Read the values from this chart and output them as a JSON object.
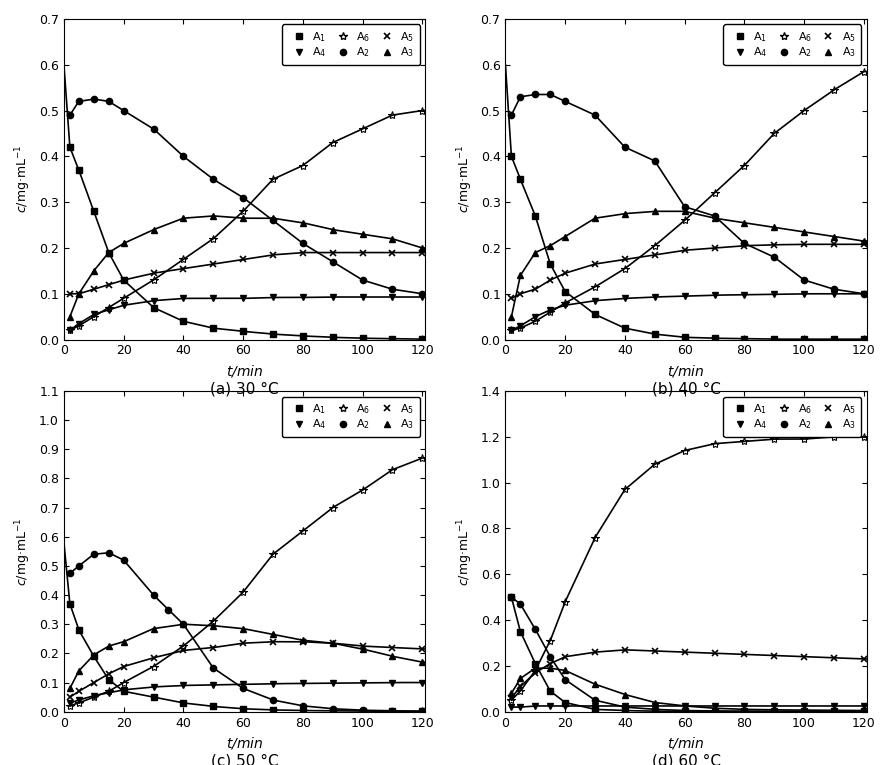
{
  "subplots": [
    {
      "title": "(a) 30 °C",
      "ylim": [
        0,
        0.7
      ],
      "yticks": [
        0.0,
        0.1,
        0.2,
        0.3,
        0.4,
        0.5,
        0.6,
        0.7
      ],
      "series": {
        "A1": {
          "t_pts": [
            2,
            5,
            10,
            15,
            20,
            30,
            40,
            50,
            60,
            70,
            80,
            90,
            100,
            110,
            120
          ],
          "c_pts": [
            0.42,
            0.37,
            0.28,
            0.19,
            0.13,
            0.07,
            0.04,
            0.025,
            0.018,
            0.012,
            0.008,
            0.005,
            0.003,
            0.002,
            0.001
          ],
          "marker": "s",
          "curve_extend_t0": 0.6
        },
        "A2": {
          "t_pts": [
            2,
            5,
            10,
            15,
            20,
            30,
            40,
            50,
            60,
            70,
            80,
            90,
            100,
            110,
            120
          ],
          "c_pts": [
            0.49,
            0.52,
            0.525,
            0.52,
            0.5,
            0.46,
            0.4,
            0.35,
            0.31,
            0.26,
            0.21,
            0.17,
            0.13,
            0.11,
            0.1
          ],
          "marker": "o",
          "curve_extend_t0": null
        },
        "A3": {
          "t_pts": [
            2,
            5,
            10,
            15,
            20,
            30,
            40,
            50,
            60,
            70,
            80,
            90,
            100,
            110,
            120
          ],
          "c_pts": [
            0.05,
            0.1,
            0.15,
            0.19,
            0.21,
            0.24,
            0.265,
            0.27,
            0.265,
            0.265,
            0.255,
            0.24,
            0.23,
            0.22,
            0.2
          ],
          "marker": "^",
          "curve_extend_t0": null
        },
        "A4": {
          "t_pts": [
            2,
            5,
            10,
            15,
            20,
            30,
            40,
            50,
            60,
            70,
            80,
            90,
            100,
            110,
            120
          ],
          "c_pts": [
            0.02,
            0.035,
            0.055,
            0.065,
            0.075,
            0.085,
            0.09,
            0.09,
            0.09,
            0.092,
            0.092,
            0.093,
            0.093,
            0.093,
            0.093
          ],
          "marker": "v",
          "curve_extend_t0": null
        },
        "A5": {
          "t_pts": [
            2,
            5,
            10,
            15,
            20,
            30,
            40,
            50,
            60,
            70,
            80,
            90,
            100,
            110,
            120
          ],
          "c_pts": [
            0.1,
            0.1,
            0.11,
            0.12,
            0.13,
            0.145,
            0.155,
            0.165,
            0.175,
            0.185,
            0.19,
            0.19,
            0.19,
            0.19,
            0.19
          ],
          "marker": "x",
          "curve_extend_t0": null
        },
        "A6": {
          "t_pts": [
            2,
            5,
            10,
            15,
            20,
            30,
            40,
            50,
            60,
            70,
            80,
            90,
            100,
            110,
            120
          ],
          "c_pts": [
            0.02,
            0.03,
            0.05,
            0.07,
            0.09,
            0.13,
            0.175,
            0.22,
            0.28,
            0.35,
            0.38,
            0.43,
            0.46,
            0.49,
            0.5
          ],
          "marker": "*",
          "curve_extend_t0": null
        }
      }
    },
    {
      "title": "(b) 40 °C",
      "ylim": [
        0,
        0.7
      ],
      "yticks": [
        0.0,
        0.1,
        0.2,
        0.3,
        0.4,
        0.5,
        0.6,
        0.7
      ],
      "series": {
        "A1": {
          "t_pts": [
            2,
            5,
            10,
            15,
            20,
            30,
            40,
            50,
            60,
            70,
            80,
            90,
            100,
            110,
            120
          ],
          "c_pts": [
            0.4,
            0.35,
            0.27,
            0.165,
            0.105,
            0.055,
            0.025,
            0.012,
            0.005,
            0.003,
            0.002,
            0.001,
            0.001,
            0.001,
            0.001
          ],
          "marker": "s",
          "curve_extend_t0": 0.6
        },
        "A2": {
          "t_pts": [
            2,
            5,
            10,
            15,
            20,
            30,
            40,
            50,
            60,
            70,
            80,
            90,
            100,
            110,
            120
          ],
          "c_pts": [
            0.49,
            0.53,
            0.535,
            0.535,
            0.52,
            0.49,
            0.42,
            0.39,
            0.29,
            0.27,
            0.21,
            0.18,
            0.13,
            0.11,
            0.1
          ],
          "marker": "o",
          "curve_extend_t0": null
        },
        "A3": {
          "t_pts": [
            2,
            5,
            10,
            15,
            20,
            30,
            40,
            50,
            60,
            70,
            80,
            90,
            100,
            110,
            120
          ],
          "c_pts": [
            0.05,
            0.14,
            0.19,
            0.205,
            0.225,
            0.265,
            0.275,
            0.28,
            0.28,
            0.265,
            0.255,
            0.245,
            0.235,
            0.225,
            0.215
          ],
          "marker": "^",
          "curve_extend_t0": null
        },
        "A4": {
          "t_pts": [
            2,
            5,
            10,
            15,
            20,
            30,
            40,
            50,
            60,
            70,
            80,
            90,
            100,
            110,
            120
          ],
          "c_pts": [
            0.02,
            0.03,
            0.05,
            0.065,
            0.075,
            0.085,
            0.09,
            0.093,
            0.095,
            0.097,
            0.098,
            0.099,
            0.1,
            0.1,
            0.1
          ],
          "marker": "v",
          "curve_extend_t0": null
        },
        "A5": {
          "t_pts": [
            2,
            5,
            10,
            15,
            20,
            30,
            40,
            50,
            60,
            70,
            80,
            90,
            100,
            110,
            120
          ],
          "c_pts": [
            0.09,
            0.1,
            0.11,
            0.13,
            0.145,
            0.165,
            0.175,
            0.185,
            0.195,
            0.2,
            0.205,
            0.207,
            0.208,
            0.208,
            0.208
          ],
          "marker": "x",
          "curve_extend_t0": null
        },
        "A6": {
          "t_pts": [
            2,
            5,
            10,
            15,
            20,
            30,
            40,
            50,
            60,
            70,
            80,
            90,
            100,
            110,
            120
          ],
          "c_pts": [
            0.02,
            0.025,
            0.04,
            0.06,
            0.08,
            0.115,
            0.155,
            0.205,
            0.26,
            0.32,
            0.38,
            0.45,
            0.5,
            0.545,
            0.585
          ],
          "marker": "*",
          "curve_extend_t0": null
        }
      }
    },
    {
      "title": "(c) 50 °C",
      "ylim": [
        0,
        1.1
      ],
      "yticks": [
        0.0,
        0.1,
        0.2,
        0.3,
        0.4,
        0.5,
        0.6,
        0.7,
        0.8,
        0.9,
        1.0,
        1.1
      ],
      "series": {
        "A1": {
          "t_pts": [
            2,
            5,
            10,
            15,
            20,
            30,
            40,
            50,
            60,
            70,
            80,
            90,
            100,
            110,
            120
          ],
          "c_pts": [
            0.37,
            0.28,
            0.19,
            0.11,
            0.07,
            0.05,
            0.03,
            0.018,
            0.01,
            0.006,
            0.004,
            0.003,
            0.002,
            0.001,
            0.001
          ],
          "marker": "s",
          "curve_extend_t0": 0.58
        },
        "A2": {
          "t_pts": [
            2,
            5,
            10,
            15,
            20,
            30,
            35,
            40,
            50,
            60,
            70,
            80,
            90,
            100,
            110,
            120
          ],
          "c_pts": [
            0.475,
            0.5,
            0.54,
            0.545,
            0.52,
            0.4,
            0.35,
            0.3,
            0.15,
            0.08,
            0.04,
            0.02,
            0.01,
            0.005,
            0.003,
            0.002
          ],
          "marker": "o",
          "curve_extend_t0": null
        },
        "A3": {
          "t_pts": [
            2,
            5,
            10,
            15,
            20,
            30,
            40,
            50,
            60,
            70,
            80,
            90,
            100,
            110,
            120
          ],
          "c_pts": [
            0.08,
            0.14,
            0.195,
            0.225,
            0.24,
            0.285,
            0.3,
            0.295,
            0.285,
            0.265,
            0.245,
            0.235,
            0.215,
            0.19,
            0.17
          ],
          "marker": "^",
          "curve_extend_t0": null
        },
        "A4": {
          "t_pts": [
            2,
            5,
            10,
            15,
            20,
            30,
            40,
            50,
            60,
            70,
            80,
            90,
            100,
            110,
            120
          ],
          "c_pts": [
            0.03,
            0.04,
            0.055,
            0.065,
            0.075,
            0.085,
            0.09,
            0.092,
            0.094,
            0.096,
            0.097,
            0.098,
            0.099,
            0.1,
            0.1
          ],
          "marker": "v",
          "curve_extend_t0": null
        },
        "A5": {
          "t_pts": [
            2,
            5,
            10,
            15,
            20,
            30,
            40,
            50,
            60,
            70,
            80,
            90,
            100,
            110,
            120
          ],
          "c_pts": [
            0.05,
            0.07,
            0.1,
            0.13,
            0.155,
            0.185,
            0.21,
            0.22,
            0.235,
            0.24,
            0.24,
            0.235,
            0.225,
            0.22,
            0.215
          ],
          "marker": "x",
          "curve_extend_t0": null
        },
        "A6": {
          "t_pts": [
            2,
            5,
            10,
            15,
            20,
            30,
            40,
            50,
            60,
            70,
            80,
            90,
            100,
            110,
            120
          ],
          "c_pts": [
            0.02,
            0.03,
            0.05,
            0.07,
            0.1,
            0.155,
            0.225,
            0.31,
            0.41,
            0.54,
            0.62,
            0.7,
            0.76,
            0.83,
            0.87
          ],
          "marker": "*",
          "curve_extend_t0": null
        }
      }
    },
    {
      "title": "(d) 60 °C",
      "ylim": [
        0,
        1.4
      ],
      "yticks": [
        0.0,
        0.2,
        0.4,
        0.6,
        0.8,
        1.0,
        1.2,
        1.4
      ],
      "series": {
        "A1": {
          "t_pts": [
            2,
            5,
            10,
            15,
            20,
            30,
            40,
            50,
            60,
            70,
            80,
            90,
            100,
            110,
            120
          ],
          "c_pts": [
            0.5,
            0.35,
            0.21,
            0.09,
            0.04,
            0.01,
            0.005,
            0.002,
            0.001,
            0.001,
            0.001,
            0.001,
            0.001,
            0.001,
            0.001
          ],
          "marker": "s",
          "curve_extend_t0": null
        },
        "A2": {
          "t_pts": [
            2,
            5,
            10,
            15,
            20,
            30,
            40,
            50,
            60,
            70,
            80,
            90,
            100,
            110,
            120
          ],
          "c_pts": [
            0.5,
            0.47,
            0.36,
            0.24,
            0.14,
            0.05,
            0.02,
            0.01,
            0.005,
            0.003,
            0.002,
            0.001,
            0.001,
            0.001,
            0.001
          ],
          "marker": "o",
          "curve_extend_t0": null
        },
        "A3": {
          "t_pts": [
            2,
            5,
            10,
            15,
            20,
            30,
            40,
            50,
            60,
            70,
            80,
            90,
            100,
            110,
            120
          ],
          "c_pts": [
            0.08,
            0.145,
            0.19,
            0.19,
            0.18,
            0.12,
            0.075,
            0.04,
            0.025,
            0.015,
            0.01,
            0.008,
            0.007,
            0.006,
            0.005
          ],
          "marker": "^",
          "curve_extend_t0": null
        },
        "A4": {
          "t_pts": [
            2,
            5,
            10,
            15,
            20,
            30,
            40,
            50,
            60,
            70,
            80,
            90,
            100,
            110,
            120
          ],
          "c_pts": [
            0.02,
            0.02,
            0.025,
            0.025,
            0.025,
            0.025,
            0.025,
            0.025,
            0.025,
            0.025,
            0.025,
            0.025,
            0.025,
            0.025,
            0.025
          ],
          "marker": "v",
          "curve_extend_t0": null
        },
        "A5": {
          "t_pts": [
            2,
            5,
            10,
            15,
            20,
            30,
            40,
            50,
            60,
            70,
            80,
            90,
            100,
            110,
            120
          ],
          "c_pts": [
            0.06,
            0.11,
            0.17,
            0.21,
            0.24,
            0.26,
            0.27,
            0.265,
            0.26,
            0.255,
            0.25,
            0.245,
            0.24,
            0.235,
            0.23
          ],
          "marker": "x",
          "curve_extend_t0": null
        },
        "A6": {
          "t_pts": [
            2,
            5,
            10,
            15,
            20,
            30,
            40,
            50,
            60,
            70,
            80,
            90,
            100,
            110,
            120
          ],
          "c_pts": [
            0.05,
            0.09,
            0.18,
            0.31,
            0.48,
            0.76,
            0.97,
            1.08,
            1.14,
            1.17,
            1.18,
            1.19,
            1.19,
            1.2,
            1.2
          ],
          "marker": "*",
          "curve_extend_t0": null
        }
      }
    }
  ],
  "xticks": [
    0,
    20,
    40,
    60,
    80,
    100,
    120
  ],
  "xlabel": "t/min",
  "ylabel": "c/mg·mL⁻¹",
  "line_width": 1.2
}
